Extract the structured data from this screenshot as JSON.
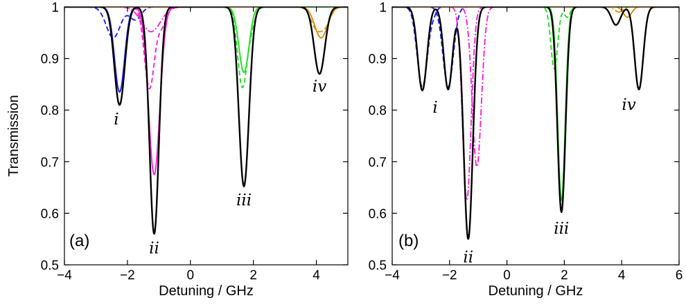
{
  "colors": {
    "black": "#000000",
    "blue": "#1a1aff",
    "magenta": "#ff1fd8",
    "green": "#22dd22",
    "orange": "#d98b0f"
  },
  "chart_data": [
    {
      "type": "line",
      "panel_label": "(a)",
      "xlabel": "Detuning / GHz",
      "ylabel": "Transmission",
      "xlim": [
        -4,
        5
      ],
      "ylim": [
        0.5,
        1
      ],
      "xticks": [
        -4,
        -2,
        0,
        2,
        4
      ],
      "yticks": [
        0.5,
        0.6,
        0.7,
        0.8,
        0.9,
        1
      ],
      "xtick_labels": [
        "−4",
        "−2",
        "0",
        "2",
        "4"
      ],
      "ytick_labels": [
        "0.5",
        "0.6",
        "0.7",
        "0.8",
        "0.9",
        "1"
      ],
      "grid": false,
      "annotations": [
        {
          "text": "i",
          "x": -2.35,
          "y": 0.772
        },
        {
          "text": "ii",
          "x": -1.15,
          "y": 0.522
        },
        {
          "text": "iii",
          "x": 1.7,
          "y": 0.615
        },
        {
          "text": "iv",
          "x": 4.1,
          "y": 0.836
        }
      ],
      "series": [
        {
          "color": "blue",
          "style": "solid",
          "dips": [
            {
              "x0": -2.25,
              "depth": 0.165,
              "width": 0.16
            }
          ]
        },
        {
          "color": "blue",
          "style": "dashed",
          "dips": [
            {
              "x0": -2.45,
              "depth": 0.06,
              "width": 0.22
            },
            {
              "x0": -1.75,
              "depth": 0.025,
              "width": 0.18
            }
          ]
        },
        {
          "color": "magenta",
          "style": "solid",
          "dips": [
            {
              "x0": -1.15,
              "depth": 0.325,
              "width": 0.18
            }
          ]
        },
        {
          "color": "magenta",
          "style": "dashed",
          "dips": [
            {
              "x0": -1.3,
              "depth": 0.158,
              "width": 0.16
            },
            {
              "x0": -0.9,
              "depth": 0.035,
              "width": 0.14
            }
          ]
        },
        {
          "color": "magenta",
          "style": "dashdot",
          "dips": [
            {
              "x0": -1.25,
              "depth": 0.048,
              "width": 0.3
            }
          ]
        },
        {
          "color": "green",
          "style": "solid",
          "dips": [
            {
              "x0": 1.7,
              "depth": 0.127,
              "width": 0.16
            }
          ]
        },
        {
          "color": "green",
          "style": "dashed",
          "dips": [
            {
              "x0": 1.65,
              "depth": 0.155,
              "width": 0.15
            },
            {
              "x0": 1.95,
              "depth": 0.03,
              "width": 0.12
            }
          ]
        },
        {
          "color": "orange",
          "style": "solid",
          "dips": [
            {
              "x0": 4.15,
              "depth": 0.06,
              "width": 0.2
            }
          ]
        },
        {
          "color": "orange",
          "style": "dashed",
          "dips": [
            {
              "x0": 4.0,
              "depth": 0.04,
              "width": 0.18
            },
            {
              "x0": 4.3,
              "depth": 0.03,
              "width": 0.16
            }
          ]
        },
        {
          "color": "black",
          "style": "solid",
          "dips": [
            {
              "x0": -2.25,
              "depth": 0.19,
              "width": 0.165
            },
            {
              "x0": -1.15,
              "depth": 0.44,
              "width": 0.15
            },
            {
              "x0": 1.7,
              "depth": 0.348,
              "width": 0.16
            },
            {
              "x0": 4.1,
              "depth": 0.13,
              "width": 0.17
            }
          ]
        }
      ]
    },
    {
      "type": "line",
      "panel_label": "(b)",
      "xlabel": "Detuning / GHz",
      "ylabel": "",
      "xlim": [
        -4,
        6
      ],
      "ylim": [
        0.5,
        1
      ],
      "xticks": [
        -4,
        -2,
        0,
        2,
        4,
        6
      ],
      "yticks": [
        0.5,
        0.6,
        0.7,
        0.8,
        0.9,
        1
      ],
      "xtick_labels": [
        "−4",
        "−2",
        "0",
        "2",
        "4",
        "6"
      ],
      "ytick_labels": [
        "0.5",
        "0.6",
        "0.7",
        "0.8",
        "0.9",
        "1"
      ],
      "grid": false,
      "annotations": [
        {
          "text": "i",
          "x": -2.5,
          "y": 0.795
        },
        {
          "text": "ii",
          "x": -1.35,
          "y": 0.505
        },
        {
          "text": "iii",
          "x": 1.9,
          "y": 0.56
        },
        {
          "text": "iv",
          "x": 4.25,
          "y": 0.8
        }
      ],
      "series": [
        {
          "color": "blue",
          "style": "dashed",
          "dips": [
            {
              "x0": -2.95,
              "depth": 0.155,
              "width": 0.18
            },
            {
              "x0": -2.55,
              "depth": 0.01,
              "width": 0.1
            }
          ]
        },
        {
          "color": "blue",
          "style": "dashed",
          "dips": [
            {
              "x0": -2.05,
              "depth": 0.155,
              "width": 0.18
            }
          ]
        },
        {
          "color": "magenta",
          "style": "dashdot",
          "dips": [
            {
              "x0": -1.4,
              "depth": 0.375,
              "width": 0.15
            }
          ]
        },
        {
          "color": "magenta",
          "style": "dashdot",
          "dips": [
            {
              "x0": -1.05,
              "depth": 0.31,
              "width": 0.16
            }
          ]
        },
        {
          "color": "green",
          "style": "solid",
          "dips": [
            {
              "x0": 1.9,
              "depth": 0.375,
              "width": 0.13
            }
          ]
        },
        {
          "color": "green",
          "style": "dashed",
          "dips": [
            {
              "x0": 1.65,
              "depth": 0.12,
              "width": 0.12
            },
            {
              "x0": 2.1,
              "depth": 0.02,
              "width": 0.1
            }
          ]
        },
        {
          "color": "orange",
          "style": "solid",
          "dips": [
            {
              "x0": 4.2,
              "depth": 0.02,
              "width": 0.14
            }
          ]
        },
        {
          "color": "orange",
          "style": "dashdot",
          "dips": [
            {
              "x0": 3.9,
              "depth": 0.01,
              "width": 0.14
            }
          ]
        },
        {
          "color": "black",
          "style": "solid",
          "dips": [
            {
              "x0": -2.95,
              "depth": 0.162,
              "width": 0.16
            },
            {
              "x0": -2.05,
              "depth": 0.16,
              "width": 0.15
            },
            {
              "x0": -1.35,
              "depth": 0.45,
              "width": 0.16
            },
            {
              "x0": 1.9,
              "depth": 0.398,
              "width": 0.14
            },
            {
              "x0": 3.8,
              "depth": 0.035,
              "width": 0.16
            },
            {
              "x0": 4.6,
              "depth": 0.16,
              "width": 0.15
            }
          ]
        }
      ]
    }
  ]
}
